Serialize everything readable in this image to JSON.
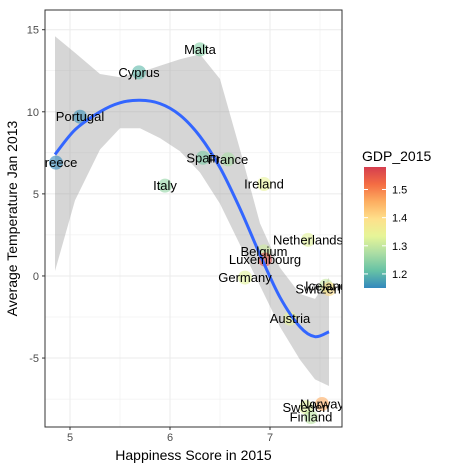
{
  "chart_data": {
    "type": "scatter",
    "xlabel": "Happiness Score in 2015",
    "ylabel": "Average Temperature Jan 2013",
    "xlim": [
      4.75,
      7.72
    ],
    "ylim": [
      -9.2,
      16.2
    ],
    "x_ticks": [
      5,
      6,
      7
    ],
    "y_ticks": [
      -5,
      0,
      5,
      10,
      15
    ],
    "grid": true,
    "legend": {
      "title": "GDP_2015",
      "type": "colorbar",
      "placement": "right",
      "palette": "Spectral",
      "range": [
        1.15,
        1.58
      ],
      "ticks": [
        1.2,
        1.3,
        1.4,
        1.5
      ],
      "colors": [
        "#3288bd",
        "#66c2a5",
        "#abdda4",
        "#e6f598",
        "#fee08b",
        "#fdae61",
        "#f46d43",
        "#d53e4f"
      ]
    },
    "points": [
      {
        "label": "Greece",
        "x": 4.86,
        "y": 6.9,
        "gdp": 1.15
      },
      {
        "label": "Portugal",
        "x": 5.1,
        "y": 9.7,
        "gdp": 1.16
      },
      {
        "label": "Cyprus",
        "x": 5.69,
        "y": 12.4,
        "gdp": 1.2
      },
      {
        "label": "Malta",
        "x": 6.3,
        "y": 13.8,
        "gdp": 1.24
      },
      {
        "label": "Italy",
        "x": 5.95,
        "y": 5.5,
        "gdp": 1.25
      },
      {
        "label": "Spain",
        "x": 6.33,
        "y": 7.2,
        "gdp": 1.23
      },
      {
        "label": "France",
        "x": 6.58,
        "y": 7.1,
        "gdp": 1.27
      },
      {
        "label": "Ireland",
        "x": 6.94,
        "y": 5.6,
        "gdp": 1.34
      },
      {
        "label": "Netherlands",
        "x": 7.38,
        "y": 2.2,
        "gdp": 1.33
      },
      {
        "label": "Belgium",
        "x": 6.94,
        "y": 1.5,
        "gdp": 1.31
      },
      {
        "label": "Luxembourg",
        "x": 6.95,
        "y": 1.0,
        "gdp": 1.56
      },
      {
        "label": "Germany",
        "x": 6.75,
        "y": -0.1,
        "gdp": 1.33
      },
      {
        "label": "Iceland",
        "x": 7.56,
        "y": -0.6,
        "gdp": 1.3
      },
      {
        "label": "Switzerland",
        "x": 7.59,
        "y": -0.8,
        "gdp": 1.4
      },
      {
        "label": "Austria",
        "x": 7.2,
        "y": -2.6,
        "gdp": 1.34
      },
      {
        "label": "Norway",
        "x": 7.52,
        "y": -7.8,
        "gdp": 1.46
      },
      {
        "label": "Sweden",
        "x": 7.36,
        "y": -8.0,
        "gdp": 1.33
      },
      {
        "label": "Finland",
        "x": 7.41,
        "y": -8.6,
        "gdp": 1.29
      }
    ],
    "smooth": {
      "method": "loess",
      "x": [
        4.85,
        5.05,
        5.3,
        5.5,
        5.7,
        5.9,
        6.1,
        6.3,
        6.5,
        6.7,
        6.9,
        7.1,
        7.3,
        7.45,
        7.59
      ],
      "y": [
        7.4,
        8.9,
        10.0,
        10.55,
        10.7,
        10.5,
        9.8,
        8.5,
        6.6,
        4.1,
        1.3,
        -1.3,
        -3.1,
        -3.7,
        -3.4
      ],
      "lower": [
        0.3,
        4.6,
        7.7,
        9.0,
        9.0,
        8.4,
        7.6,
        6.3,
        4.4,
        1.9,
        -0.6,
        -3.1,
        -5.1,
        -6.3,
        -6.7
      ],
      "upper": [
        14.6,
        13.6,
        12.3,
        12.1,
        12.4,
        12.8,
        13.2,
        13.5,
        12.0,
        7.7,
        3.2,
        0.5,
        -1.1,
        -1.4,
        -0.1
      ],
      "color": "#3366ff"
    }
  }
}
